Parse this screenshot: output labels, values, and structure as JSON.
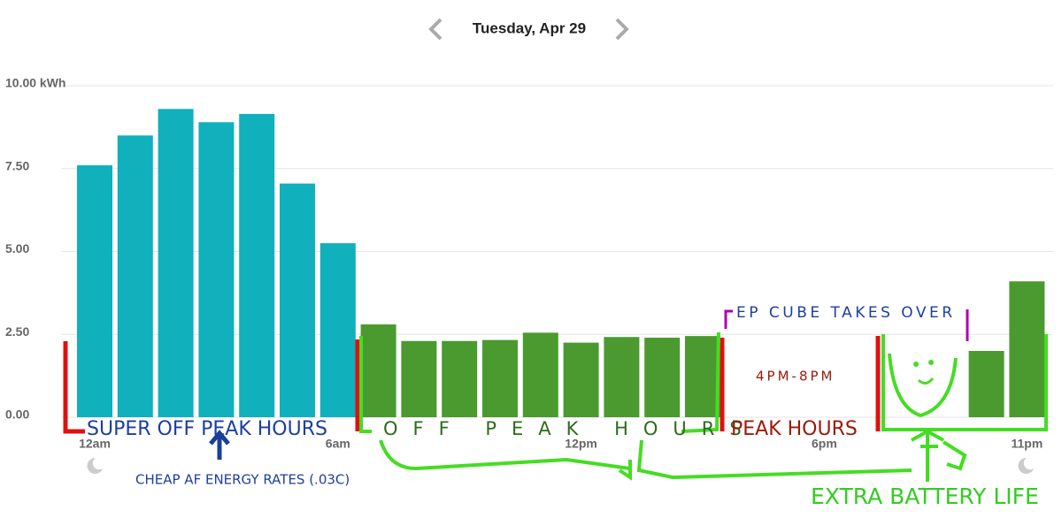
{
  "chart_data": {
    "type": "bar",
    "title": "Tuesday, Apr 29",
    "categories": [
      "12am",
      null,
      null,
      null,
      null,
      null,
      "6am",
      null,
      null,
      null,
      null,
      null,
      "12pm",
      null,
      null,
      null,
      null,
      null,
      "6pm",
      null,
      null,
      null,
      null,
      "11pm"
    ],
    "values": [
      7.6,
      8.5,
      9.3,
      8.9,
      9.15,
      7.05,
      5.25,
      2.8,
      2.3,
      2.3,
      2.33,
      2.55,
      2.25,
      2.42,
      2.4,
      2.45,
      null,
      null,
      null,
      null,
      null,
      null,
      2.0,
      4.1
    ],
    "colors": [
      "#10b0bd",
      "#10b0bd",
      "#10b0bd",
      "#10b0bd",
      "#10b0bd",
      "#10b0bd",
      "#10b0bd",
      "#4a9a30",
      "#4a9a30",
      "#4a9a30",
      "#4a9a30",
      "#4a9a30",
      "#4a9a30",
      "#4a9a30",
      "#4a9a30",
      "#4a9a30",
      "#4a9a30",
      "#4a9a30",
      "#4a9a30",
      "#4a9a30",
      "#4a9a30",
      "#4a9a30",
      "#4a9a30",
      "#4a9a30"
    ],
    "ylim": [
      0,
      10
    ],
    "yticks": [
      {
        "value": 0,
        "label": "0.00"
      },
      {
        "value": 2.5,
        "label": "2.50"
      },
      {
        "value": 5,
        "label": "5.00"
      },
      {
        "value": 7.5,
        "label": "7.50"
      },
      {
        "value": 10,
        "label": "10.00 kWh"
      }
    ],
    "grid": true,
    "annotations": [
      "SUPER OFF PEAK HOURS",
      "CHEAP AF ENERGY RATES (.03C)",
      "OFF PEAK HOURS",
      "PEAK HOURS",
      "4PM-8PM",
      "EP CUBE TAKES OVER",
      "EXTRA BATTERY LIFE"
    ]
  }
}
